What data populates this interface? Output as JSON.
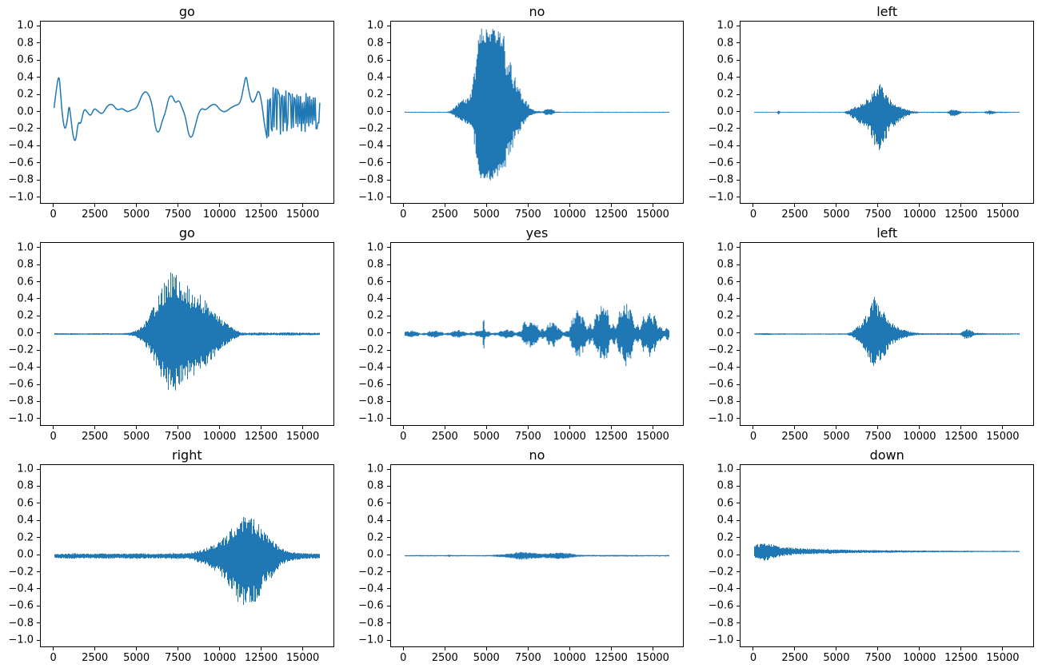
{
  "style": {
    "line_color": "#1f77b4",
    "axis_color": "#000000",
    "background": "#ffffff"
  },
  "axes": {
    "xlim": [
      -800,
      16800
    ],
    "ylim": [
      -1.06,
      1.06
    ],
    "x_tick_values": [
      0,
      2500,
      5000,
      7500,
      10000,
      12500,
      15000
    ],
    "x_tick_labels": [
      "0",
      "2500",
      "5000",
      "7500",
      "10000",
      "12500",
      "15000"
    ],
    "y_tick_values": [
      1.0,
      0.8,
      0.6,
      0.4,
      0.2,
      0.0,
      -0.2,
      -0.4,
      -0.6,
      -0.8,
      -1.0
    ],
    "y_tick_labels": [
      "1.0",
      "0.8",
      "0.6",
      "0.4",
      "0.2",
      "0.0",
      "−0.2",
      "−0.4",
      "−0.6",
      "−0.8",
      "−1.0"
    ]
  },
  "chart_data": [
    {
      "type": "line",
      "title": "go",
      "style": "smooth",
      "line_color": "#1f77b4",
      "xlabel": "",
      "ylabel": "",
      "x_range": [
        0,
        16000
      ],
      "ylim": [
        -1.0,
        1.0
      ],
      "points": [
        [
          0,
          0.05
        ],
        [
          150,
          0.3
        ],
        [
          300,
          0.45
        ],
        [
          400,
          0.2
        ],
        [
          500,
          -0.05
        ],
        [
          650,
          -0.22
        ],
        [
          800,
          -0.1
        ],
        [
          900,
          0.1
        ],
        [
          1000,
          -0.05
        ],
        [
          1150,
          -0.3
        ],
        [
          1300,
          -0.35
        ],
        [
          1450,
          -0.1
        ],
        [
          1600,
          -0.15
        ],
        [
          1800,
          0.05
        ],
        [
          2000,
          0.0
        ],
        [
          2200,
          -0.05
        ],
        [
          2400,
          0.05
        ],
        [
          2600,
          0.02
        ],
        [
          2900,
          -0.03
        ],
        [
          3200,
          0.08
        ],
        [
          3500,
          0.1
        ],
        [
          3800,
          0.02
        ],
        [
          4100,
          0.05
        ],
        [
          4400,
          0.0
        ],
        [
          4700,
          0.03
        ],
        [
          5000,
          0.05
        ],
        [
          5300,
          0.22
        ],
        [
          5600,
          0.25
        ],
        [
          5900,
          0.1
        ],
        [
          6100,
          -0.2
        ],
        [
          6300,
          -0.25
        ],
        [
          6500,
          -0.1
        ],
        [
          6700,
          0.0
        ],
        [
          6900,
          0.18
        ],
        [
          7100,
          0.2
        ],
        [
          7300,
          0.1
        ],
        [
          7500,
          0.15
        ],
        [
          7700,
          0.05
        ],
        [
          7900,
          -0.05
        ],
        [
          8100,
          -0.28
        ],
        [
          8300,
          -0.3
        ],
        [
          8500,
          -0.15
        ],
        [
          8700,
          0.0
        ],
        [
          8900,
          0.05
        ],
        [
          9100,
          0.02
        ],
        [
          9400,
          0.08
        ],
        [
          9700,
          0.1
        ],
        [
          10000,
          0.02
        ],
        [
          10300,
          0.0
        ],
        [
          10600,
          0.05
        ],
        [
          10900,
          0.08
        ],
        [
          11200,
          0.1
        ],
        [
          11400,
          0.3
        ],
        [
          11550,
          0.45
        ],
        [
          11700,
          0.25
        ],
        [
          11900,
          0.1
        ],
        [
          12100,
          0.15
        ],
        [
          12300,
          0.28
        ],
        [
          12500,
          0.1
        ],
        [
          12650,
          -0.15
        ],
        [
          12800,
          -0.3
        ]
      ],
      "noise_tail": {
        "start": 12800,
        "end": 16000,
        "amp": 0.3
      }
    },
    {
      "type": "line",
      "title": "no",
      "style": "burst",
      "line_color": "#1f77b4",
      "x_range": [
        0,
        16000
      ],
      "pos_scale": 1.0,
      "neg_scale": 0.8,
      "dc": 0,
      "envelope": [
        [
          0,
          0.006
        ],
        [
          2600,
          0.006
        ],
        [
          2800,
          0.02
        ],
        [
          3000,
          0.06
        ],
        [
          3300,
          0.12
        ],
        [
          3600,
          0.16
        ],
        [
          3900,
          0.18
        ],
        [
          4100,
          0.3
        ],
        [
          4300,
          0.6
        ],
        [
          4500,
          0.95
        ],
        [
          4700,
          1.0
        ],
        [
          5300,
          1.0
        ],
        [
          5700,
          0.95
        ],
        [
          6000,
          0.9
        ],
        [
          6200,
          0.7
        ],
        [
          6500,
          0.55
        ],
        [
          6800,
          0.35
        ],
        [
          7000,
          0.28
        ],
        [
          7300,
          0.15
        ],
        [
          7600,
          0.06
        ],
        [
          7900,
          0.02
        ],
        [
          8300,
          0.01
        ],
        [
          8600,
          0.05
        ],
        [
          8900,
          0.04
        ],
        [
          9100,
          0.01
        ],
        [
          9500,
          0.006
        ],
        [
          16000,
          0.006
        ]
      ]
    },
    {
      "type": "line",
      "title": "left",
      "style": "burst",
      "line_color": "#1f77b4",
      "x_range": [
        0,
        16000
      ],
      "pos_scale": 0.7,
      "neg_scale": 1.0,
      "dc": 0,
      "envelope": [
        [
          0,
          0.006
        ],
        [
          1400,
          0.006
        ],
        [
          1500,
          0.035
        ],
        [
          1600,
          0.006
        ],
        [
          5400,
          0.006
        ],
        [
          5700,
          0.03
        ],
        [
          6000,
          0.08
        ],
        [
          6400,
          0.15
        ],
        [
          6800,
          0.22
        ],
        [
          7100,
          0.3
        ],
        [
          7400,
          0.5
        ],
        [
          7700,
          0.45
        ],
        [
          8000,
          0.3
        ],
        [
          8300,
          0.2
        ],
        [
          8700,
          0.12
        ],
        [
          9100,
          0.06
        ],
        [
          9500,
          0.02
        ],
        [
          10000,
          0.008
        ],
        [
          11600,
          0.008
        ],
        [
          11900,
          0.05
        ],
        [
          12200,
          0.04
        ],
        [
          12500,
          0.01
        ],
        [
          13800,
          0.008
        ],
        [
          14200,
          0.03
        ],
        [
          14600,
          0.01
        ],
        [
          16000,
          0.006
        ]
      ]
    },
    {
      "type": "line",
      "title": "go",
      "style": "burst",
      "line_color": "#1f77b4",
      "x_range": [
        0,
        16000
      ],
      "pos_scale": 1.0,
      "neg_scale": 0.95,
      "dc": 0,
      "envelope": [
        [
          0,
          0.01
        ],
        [
          4200,
          0.01
        ],
        [
          4600,
          0.02
        ],
        [
          5000,
          0.05
        ],
        [
          5400,
          0.12
        ],
        [
          5800,
          0.25
        ],
        [
          6200,
          0.45
        ],
        [
          6600,
          0.6
        ],
        [
          7000,
          0.75
        ],
        [
          7400,
          0.68
        ],
        [
          7800,
          0.6
        ],
        [
          8200,
          0.55
        ],
        [
          8600,
          0.5
        ],
        [
          9000,
          0.42
        ],
        [
          9400,
          0.35
        ],
        [
          9800,
          0.25
        ],
        [
          10200,
          0.15
        ],
        [
          10600,
          0.1
        ],
        [
          10900,
          0.06
        ],
        [
          11200,
          0.02
        ],
        [
          11600,
          0.015
        ],
        [
          12400,
          0.02
        ],
        [
          13000,
          0.015
        ],
        [
          14000,
          0.02
        ],
        [
          15000,
          0.015
        ],
        [
          16000,
          0.015
        ]
      ]
    },
    {
      "type": "line",
      "title": "yes",
      "style": "burst",
      "line_color": "#1f77b4",
      "x_range": [
        0,
        16000
      ],
      "pos_scale": 1.0,
      "neg_scale": 1.0,
      "dc": 0,
      "ripple": true,
      "envelope": [
        [
          0,
          0.035
        ],
        [
          600,
          0.045
        ],
        [
          1200,
          0.035
        ],
        [
          1800,
          0.05
        ],
        [
          2400,
          0.04
        ],
        [
          3000,
          0.05
        ],
        [
          3600,
          0.045
        ],
        [
          4200,
          0.05
        ],
        [
          4700,
          0.05
        ],
        [
          4780,
          0.25
        ],
        [
          4860,
          0.05
        ],
        [
          5400,
          0.05
        ],
        [
          6000,
          0.05
        ],
        [
          6600,
          0.06
        ],
        [
          7000,
          0.1
        ],
        [
          7100,
          0.22
        ],
        [
          7300,
          0.18
        ],
        [
          7600,
          0.15
        ],
        [
          8000,
          0.2
        ],
        [
          8400,
          0.15
        ],
        [
          8800,
          0.18
        ],
        [
          9200,
          0.12
        ],
        [
          9500,
          0.08
        ],
        [
          9800,
          0.12
        ],
        [
          10100,
          0.25
        ],
        [
          10500,
          0.3
        ],
        [
          10900,
          0.28
        ],
        [
          11300,
          0.35
        ],
        [
          11700,
          0.3
        ],
        [
          12100,
          0.38
        ],
        [
          12500,
          0.33
        ],
        [
          12900,
          0.4
        ],
        [
          13300,
          0.35
        ],
        [
          13700,
          0.38
        ],
        [
          14100,
          0.3
        ],
        [
          14500,
          0.32
        ],
        [
          14900,
          0.25
        ],
        [
          15300,
          0.28
        ],
        [
          15700,
          0.15
        ],
        [
          16000,
          0.08
        ]
      ]
    },
    {
      "type": "line",
      "title": "left",
      "style": "burst",
      "line_color": "#1f77b4",
      "x_range": [
        0,
        16000
      ],
      "pos_scale": 1.0,
      "neg_scale": 1.0,
      "dc": 0,
      "envelope": [
        [
          0,
          0.008
        ],
        [
          700,
          0.012
        ],
        [
          1500,
          0.008
        ],
        [
          5500,
          0.008
        ],
        [
          5800,
          0.02
        ],
        [
          6100,
          0.06
        ],
        [
          6400,
          0.12
        ],
        [
          6700,
          0.2
        ],
        [
          7000,
          0.35
        ],
        [
          7200,
          0.45
        ],
        [
          7500,
          0.35
        ],
        [
          7800,
          0.28
        ],
        [
          8100,
          0.18
        ],
        [
          8400,
          0.12
        ],
        [
          8800,
          0.07
        ],
        [
          9200,
          0.04
        ],
        [
          9600,
          0.02
        ],
        [
          10000,
          0.01
        ],
        [
          12400,
          0.01
        ],
        [
          12700,
          0.06
        ],
        [
          13000,
          0.05
        ],
        [
          13300,
          0.015
        ],
        [
          14000,
          0.01
        ],
        [
          16000,
          0.008
        ]
      ]
    },
    {
      "type": "line",
      "title": "right",
      "style": "burst",
      "line_color": "#1f77b4",
      "x_range": [
        0,
        16000
      ],
      "pos_scale": 1.0,
      "neg_scale": 1.3,
      "dc": 0,
      "envelope": [
        [
          0,
          0.02
        ],
        [
          1000,
          0.03
        ],
        [
          2000,
          0.025
        ],
        [
          3000,
          0.03
        ],
        [
          4000,
          0.025
        ],
        [
          5000,
          0.03
        ],
        [
          6000,
          0.025
        ],
        [
          7000,
          0.03
        ],
        [
          8000,
          0.03
        ],
        [
          8500,
          0.05
        ],
        [
          9000,
          0.08
        ],
        [
          9500,
          0.12
        ],
        [
          10000,
          0.18
        ],
        [
          10400,
          0.25
        ],
        [
          10800,
          0.35
        ],
        [
          11200,
          0.45
        ],
        [
          11600,
          0.5
        ],
        [
          12000,
          0.45
        ],
        [
          12400,
          0.35
        ],
        [
          12800,
          0.25
        ],
        [
          13200,
          0.18
        ],
        [
          13600,
          0.1
        ],
        [
          14000,
          0.06
        ],
        [
          14400,
          0.04
        ],
        [
          15000,
          0.03
        ],
        [
          16000,
          0.025
        ]
      ]
    },
    {
      "type": "line",
      "title": "no",
      "style": "burst",
      "line_color": "#1f77b4",
      "x_range": [
        0,
        16000
      ],
      "pos_scale": 1.0,
      "neg_scale": 1.0,
      "dc": 0,
      "envelope": [
        [
          0,
          0.008
        ],
        [
          2600,
          0.008
        ],
        [
          2700,
          0.015
        ],
        [
          2800,
          0.008
        ],
        [
          5200,
          0.008
        ],
        [
          5600,
          0.015
        ],
        [
          6000,
          0.02
        ],
        [
          6500,
          0.03
        ],
        [
          7000,
          0.05
        ],
        [
          7500,
          0.04
        ],
        [
          8000,
          0.03
        ],
        [
          8500,
          0.03
        ],
        [
          9000,
          0.035
        ],
        [
          9500,
          0.04
        ],
        [
          10000,
          0.03
        ],
        [
          10400,
          0.015
        ],
        [
          10800,
          0.01
        ],
        [
          16000,
          0.008
        ]
      ]
    },
    {
      "type": "line",
      "title": "down",
      "style": "burst",
      "line_color": "#1f77b4",
      "x_range": [
        0,
        16000
      ],
      "pos_scale": 1.0,
      "neg_scale": 1.0,
      "dc": 0.05,
      "envelope": [
        [
          0,
          0.07
        ],
        [
          300,
          0.09
        ],
        [
          600,
          0.11
        ],
        [
          900,
          0.1
        ],
        [
          1200,
          0.08
        ],
        [
          1600,
          0.06
        ],
        [
          2000,
          0.05
        ],
        [
          2600,
          0.04
        ],
        [
          3200,
          0.035
        ],
        [
          4000,
          0.03
        ],
        [
          5000,
          0.025
        ],
        [
          6000,
          0.02
        ],
        [
          8000,
          0.015
        ],
        [
          10000,
          0.012
        ],
        [
          12000,
          0.01
        ],
        [
          14000,
          0.008
        ],
        [
          16000,
          0.008
        ]
      ]
    }
  ]
}
